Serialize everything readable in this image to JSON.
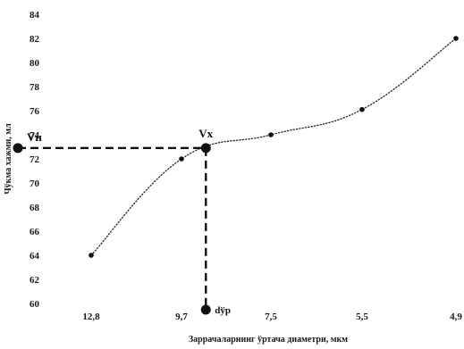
{
  "chart_data": {
    "type": "line",
    "title": "",
    "xlabel": "Заррачаларнинг ўртача диаметри, мкм",
    "ylabel": "Чўкма хажми, мл",
    "categories": [
      "12,8",
      "9,7",
      "7,5",
      "5,5",
      "4,9"
    ],
    "ylim": [
      60,
      84
    ],
    "y_ticks": [
      60,
      62,
      64,
      66,
      68,
      70,
      72,
      74,
      76,
      78,
      80,
      82,
      84
    ],
    "grid": false,
    "legend": "none",
    "line_style": "dotted",
    "line_color": "#222222",
    "series": [
      {
        "points": [
          {
            "x": 12.8,
            "y": 64.0
          },
          {
            "x": 9.7,
            "y": 72.0
          },
          {
            "x": 7.5,
            "y": 74.0
          },
          {
            "x": 5.5,
            "y": 76.1
          },
          {
            "x": 4.9,
            "y": 82.0
          }
        ]
      }
    ],
    "annotations": {
      "vx_label": "Vx",
      "vx_point": {
        "x": 9.1,
        "y": 72.9
      },
      "vn_label": "Vн",
      "dyp_label": "dўр"
    }
  }
}
